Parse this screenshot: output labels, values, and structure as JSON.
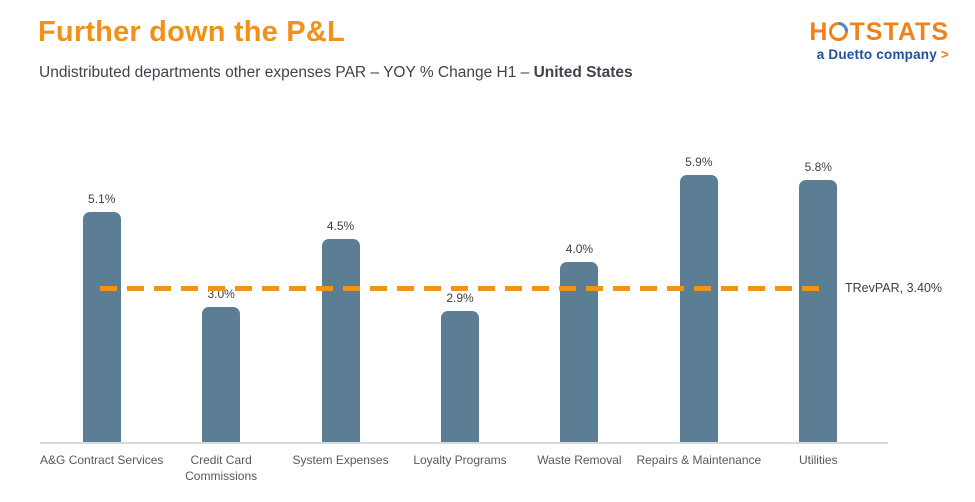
{
  "header": {
    "title": "Further down the P&L",
    "subtitle_prefix": "Undistributed departments other expenses PAR – YOY % Change H1 – ",
    "subtitle_bold": "United States"
  },
  "logo": {
    "word_start": "H",
    "word_end": "TSTATS",
    "tagline": "a Duetto company",
    "arrow": ">"
  },
  "chart_data": {
    "type": "bar",
    "title": "Undistributed departments other expenses PAR – YOY % Change H1 – United States",
    "categories": [
      "A&G Contract Services",
      "Credit Card Commissions",
      "System Expenses",
      "Loyalty Programs",
      "Waste Removal",
      "Repairs & Maintenance",
      "Utilities"
    ],
    "values": [
      5.1,
      3.0,
      4.5,
      2.9,
      4.0,
      5.9,
      5.8
    ],
    "data_labels": [
      "5.1%",
      "3.0%",
      "4.5%",
      "2.9%",
      "4.0%",
      "5.9%",
      "5.8%"
    ],
    "reference_line": {
      "label": "TRevPAR, 3.40%",
      "value": 3.4
    },
    "xlabel": "",
    "ylabel": "",
    "ylim": [
      0,
      6.9
    ],
    "grid": false,
    "legend": false,
    "bar_color": "#5B7E94",
    "reference_line_color": "#F0931B",
    "label_color": "#3F3F3F",
    "axis_label_color": "#595959"
  }
}
